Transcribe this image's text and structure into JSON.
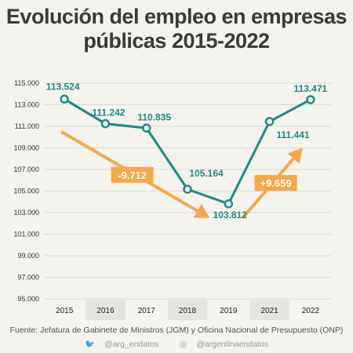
{
  "chart_data": {
    "type": "line",
    "title": "Evolución del empleo en empresas públicas 2015-2022",
    "categories": [
      "2015",
      "2016",
      "2017",
      "2018",
      "2019",
      "2021",
      "2022"
    ],
    "series": [
      {
        "values": [
          113524,
          111242,
          110835,
          105164,
          103812,
          111441,
          113471
        ],
        "data_labels": [
          "113.524",
          "111.242",
          "110.835",
          "105.164",
          "103.812",
          "111.441",
          "113.471"
        ],
        "color": "#1e8a86"
      }
    ],
    "yticks": [
      95000,
      97000,
      99000,
      101000,
      103000,
      105000,
      107000,
      109000,
      111000,
      113000,
      115000
    ],
    "ytick_labels": [
      "95.000",
      "97.000",
      "99.000",
      "101.000",
      "103.000",
      "105.000",
      "107.000",
      "109.000",
      "111.000",
      "113.000",
      "115.000"
    ],
    "ylim": [
      95000,
      115000
    ],
    "grid": true,
    "annotations": [
      {
        "label": "-9.712",
        "from_category": "2015",
        "to_category": "2019",
        "from_value": 110500,
        "to_value": 102500
      },
      {
        "label": "+9.659",
        "from_category": "2019",
        "to_category": "2022",
        "from_value": 102500,
        "to_value": 109000
      }
    ],
    "colors": {
      "line": "#1e8a86",
      "arrow": "#f6a84a",
      "badge_text": "#ffffff",
      "grid": "#dcdad4",
      "band_alt": "#e6e4df"
    }
  },
  "footer": {
    "source": "Fuente: Jefatura de Gabinete de Ministros (JGM) y Oficina Nacional de Presupuesto (ONP)",
    "twitter": "@arg_endatos",
    "instagram": "@argentinaendatos"
  },
  "icons": {
    "twitter": "bird-icon",
    "instagram": "camera-icon"
  }
}
